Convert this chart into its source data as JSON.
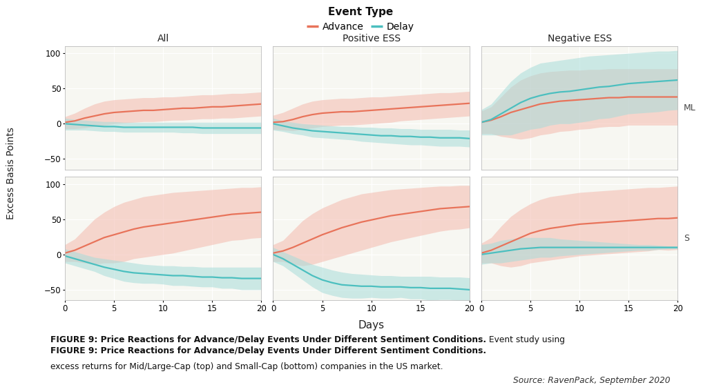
{
  "title": "Event Type",
  "legend_advance": "Advance",
  "legend_delay": "Delay",
  "col_titles": [
    "All",
    "Positive ESS",
    "Negative ESS"
  ],
  "row_labels": [
    "ML",
    "S"
  ],
  "xlabel": "Days",
  "ylabel": "Excess Basis Points",
  "advance_color": "#E8735A",
  "delay_color": "#4BBFBF",
  "advance_fill_color": "#F4BFB4",
  "delay_fill_color": "#A8DCDA",
  "advance_fill_alpha": 0.6,
  "delay_fill_alpha": 0.55,
  "bg_color": "#F7F7F2",
  "grid_color": "#FFFFFF",
  "line_width": 1.6,
  "panels": {
    "ML_All": {
      "advance_mean": [
        2,
        4,
        8,
        11,
        14,
        16,
        17,
        18,
        19,
        19,
        20,
        21,
        22,
        22,
        23,
        24,
        24,
        25,
        26,
        27,
        28
      ],
      "advance_upper": [
        10,
        15,
        22,
        28,
        32,
        34,
        35,
        36,
        37,
        37,
        38,
        38,
        39,
        40,
        41,
        41,
        42,
        43,
        43,
        44,
        45
      ],
      "advance_lower": [
        -7,
        -7,
        -6,
        -4,
        -2,
        0,
        1,
        2,
        3,
        3,
        4,
        5,
        5,
        6,
        7,
        7,
        8,
        8,
        9,
        10,
        11
      ],
      "delay_mean": [
        0,
        -1,
        -2,
        -3,
        -4,
        -4,
        -5,
        -5,
        -5,
        -5,
        -5,
        -5,
        -5,
        -5,
        -6,
        -6,
        -6,
        -6,
        -6,
        -6,
        -6
      ],
      "delay_upper": [
        8,
        6,
        5,
        4,
        3,
        3,
        2,
        2,
        2,
        2,
        2,
        2,
        2,
        2,
        2,
        2,
        2,
        2,
        2,
        2,
        2
      ],
      "delay_lower": [
        -9,
        -9,
        -9,
        -10,
        -11,
        -11,
        -12,
        -12,
        -12,
        -12,
        -12,
        -12,
        -13,
        -13,
        -14,
        -14,
        -14,
        -14,
        -14,
        -14,
        -14
      ]
    },
    "ML_Pos": {
      "advance_mean": [
        2,
        3,
        6,
        10,
        13,
        15,
        16,
        17,
        17,
        18,
        19,
        20,
        21,
        22,
        23,
        24,
        25,
        26,
        27,
        28,
        29
      ],
      "advance_upper": [
        12,
        16,
        22,
        28,
        32,
        34,
        35,
        36,
        36,
        37,
        38,
        38,
        39,
        40,
        41,
        42,
        43,
        44,
        44,
        45,
        46
      ],
      "advance_lower": [
        -8,
        -9,
        -10,
        -8,
        -6,
        -4,
        -3,
        -2,
        -2,
        -1,
        0,
        1,
        2,
        4,
        5,
        6,
        7,
        8,
        9,
        10,
        11
      ],
      "delay_mean": [
        0,
        -3,
        -6,
        -8,
        -10,
        -11,
        -12,
        -13,
        -14,
        -15,
        -16,
        -17,
        -17,
        -18,
        -18,
        -19,
        -19,
        -20,
        -20,
        -20,
        -21
      ],
      "delay_upper": [
        8,
        4,
        2,
        0,
        -1,
        -2,
        -3,
        -4,
        -4,
        -5,
        -5,
        -6,
        -6,
        -7,
        -7,
        -8,
        -8,
        -8,
        -8,
        -9,
        -9
      ],
      "delay_lower": [
        -9,
        -11,
        -14,
        -16,
        -19,
        -20,
        -21,
        -22,
        -23,
        -25,
        -26,
        -27,
        -28,
        -29,
        -30,
        -30,
        -31,
        -32,
        -32,
        -32,
        -33
      ]
    },
    "ML_Neg": {
      "advance_mean": [
        2,
        5,
        10,
        16,
        20,
        24,
        28,
        30,
        32,
        33,
        34,
        35,
        36,
        37,
        37,
        38,
        38,
        38,
        38,
        38,
        38
      ],
      "advance_upper": [
        18,
        24,
        38,
        52,
        62,
        68,
        72,
        74,
        75,
        76,
        76,
        77,
        77,
        78,
        78,
        78,
        78,
        78,
        78,
        78,
        78
      ],
      "advance_lower": [
        -14,
        -14,
        -18,
        -20,
        -22,
        -20,
        -16,
        -14,
        -11,
        -10,
        -8,
        -7,
        -5,
        -4,
        -4,
        -2,
        -2,
        -2,
        -2,
        -2,
        -2
      ],
      "delay_mean": [
        2,
        6,
        14,
        22,
        30,
        36,
        40,
        43,
        45,
        46,
        48,
        50,
        52,
        53,
        55,
        57,
        58,
        59,
        60,
        61,
        62
      ],
      "delay_upper": [
        20,
        28,
        44,
        60,
        72,
        80,
        86,
        88,
        90,
        92,
        94,
        96,
        97,
        98,
        99,
        100,
        101,
        102,
        103,
        103,
        104
      ],
      "delay_lower": [
        -16,
        -16,
        -16,
        -16,
        -12,
        -8,
        -6,
        -2,
        0,
        0,
        2,
        4,
        7,
        8,
        11,
        14,
        15,
        16,
        17,
        19,
        20
      ]
    },
    "S_All": {
      "advance_mean": [
        2,
        6,
        12,
        18,
        24,
        28,
        32,
        36,
        39,
        41,
        43,
        45,
        47,
        49,
        51,
        53,
        55,
        57,
        58,
        59,
        60
      ],
      "advance_upper": [
        14,
        22,
        36,
        50,
        60,
        68,
        74,
        78,
        82,
        84,
        86,
        88,
        89,
        90,
        91,
        92,
        93,
        94,
        95,
        95,
        96
      ],
      "advance_lower": [
        -10,
        -10,
        -12,
        -14,
        -12,
        -12,
        -10,
        -6,
        -4,
        -2,
        0,
        2,
        5,
        8,
        11,
        14,
        17,
        20,
        21,
        23,
        24
      ],
      "delay_mean": [
        -2,
        -6,
        -10,
        -14,
        -18,
        -21,
        -24,
        -26,
        -27,
        -28,
        -29,
        -30,
        -30,
        -31,
        -32,
        -32,
        -33,
        -33,
        -34,
        -34,
        -34
      ],
      "delay_upper": [
        8,
        4,
        0,
        -4,
        -6,
        -8,
        -10,
        -12,
        -14,
        -15,
        -16,
        -16,
        -17,
        -17,
        -18,
        -18,
        -18,
        -18,
        -18,
        -18,
        -18
      ],
      "delay_lower": [
        -12,
        -16,
        -20,
        -24,
        -30,
        -34,
        -38,
        -40,
        -41,
        -41,
        -42,
        -44,
        -44,
        -45,
        -46,
        -46,
        -48,
        -48,
        -50,
        -50,
        -50
      ]
    },
    "S_Pos": {
      "advance_mean": [
        2,
        5,
        10,
        16,
        22,
        28,
        33,
        38,
        42,
        46,
        49,
        52,
        55,
        57,
        59,
        61,
        63,
        65,
        66,
        67,
        68
      ],
      "advance_upper": [
        14,
        20,
        34,
        48,
        58,
        66,
        72,
        78,
        82,
        86,
        88,
        90,
        92,
        93,
        94,
        95,
        96,
        97,
        97,
        98,
        98
      ],
      "advance_lower": [
        -10,
        -10,
        -14,
        -16,
        -14,
        -10,
        -6,
        -2,
        2,
        6,
        10,
        14,
        18,
        21,
        24,
        27,
        30,
        33,
        35,
        36,
        38
      ],
      "delay_mean": [
        0,
        -6,
        -14,
        -22,
        -30,
        -36,
        -40,
        -43,
        -44,
        -45,
        -45,
        -46,
        -46,
        -46,
        -47,
        -47,
        -48,
        -48,
        -48,
        -49,
        -50
      ],
      "delay_upper": [
        10,
        4,
        -2,
        -8,
        -14,
        -18,
        -22,
        -25,
        -27,
        -28,
        -29,
        -30,
        -30,
        -31,
        -31,
        -31,
        -31,
        -32,
        -32,
        -32,
        -33
      ],
      "delay_lower": [
        -10,
        -16,
        -26,
        -36,
        -46,
        -54,
        -58,
        -61,
        -62,
        -62,
        -61,
        -62,
        -62,
        -61,
        -63,
        -63,
        -65,
        -64,
        -64,
        -66,
        -67
      ]
    },
    "S_Neg": {
      "advance_mean": [
        2,
        6,
        12,
        18,
        24,
        30,
        34,
        37,
        39,
        41,
        43,
        44,
        45,
        46,
        47,
        48,
        49,
        50,
        51,
        51,
        52
      ],
      "advance_upper": [
        16,
        24,
        40,
        54,
        64,
        72,
        78,
        82,
        84,
        86,
        88,
        89,
        90,
        91,
        92,
        93,
        94,
        95,
        95,
        96,
        97
      ],
      "advance_lower": [
        -12,
        -12,
        -16,
        -18,
        -16,
        -12,
        -10,
        -8,
        -6,
        -4,
        -2,
        -1,
        0,
        1,
        2,
        3,
        4,
        5,
        7,
        6,
        7
      ],
      "delay_mean": [
        0,
        2,
        4,
        6,
        8,
        9,
        10,
        10,
        10,
        10,
        10,
        10,
        10,
        10,
        10,
        10,
        10,
        10,
        10,
        10,
        10
      ],
      "delay_upper": [
        14,
        16,
        20,
        22,
        24,
        24,
        24,
        24,
        22,
        21,
        20,
        19,
        18,
        17,
        16,
        15,
        14,
        14,
        13,
        12,
        12
      ],
      "delay_lower": [
        -14,
        -12,
        -12,
        -10,
        -8,
        -6,
        -4,
        -4,
        -2,
        -1,
        0,
        1,
        2,
        3,
        4,
        5,
        6,
        6,
        7,
        8,
        8
      ]
    }
  },
  "ylim": [
    -65,
    110
  ],
  "yticks": [
    -50,
    0,
    50,
    100
  ],
  "xticks": [
    0,
    5,
    10,
    15,
    20
  ],
  "caption_bold": "FIGURE 9: Price Reactions for Advance/Delay Events Under Different Sentiment Conditions.",
  "caption_normal": " Event study using\nexcess returns for Mid/Large-Cap (top) and Small-Cap (bottom) companies in the US market.",
  "source_text": "Source: RavenPack, September 2020"
}
